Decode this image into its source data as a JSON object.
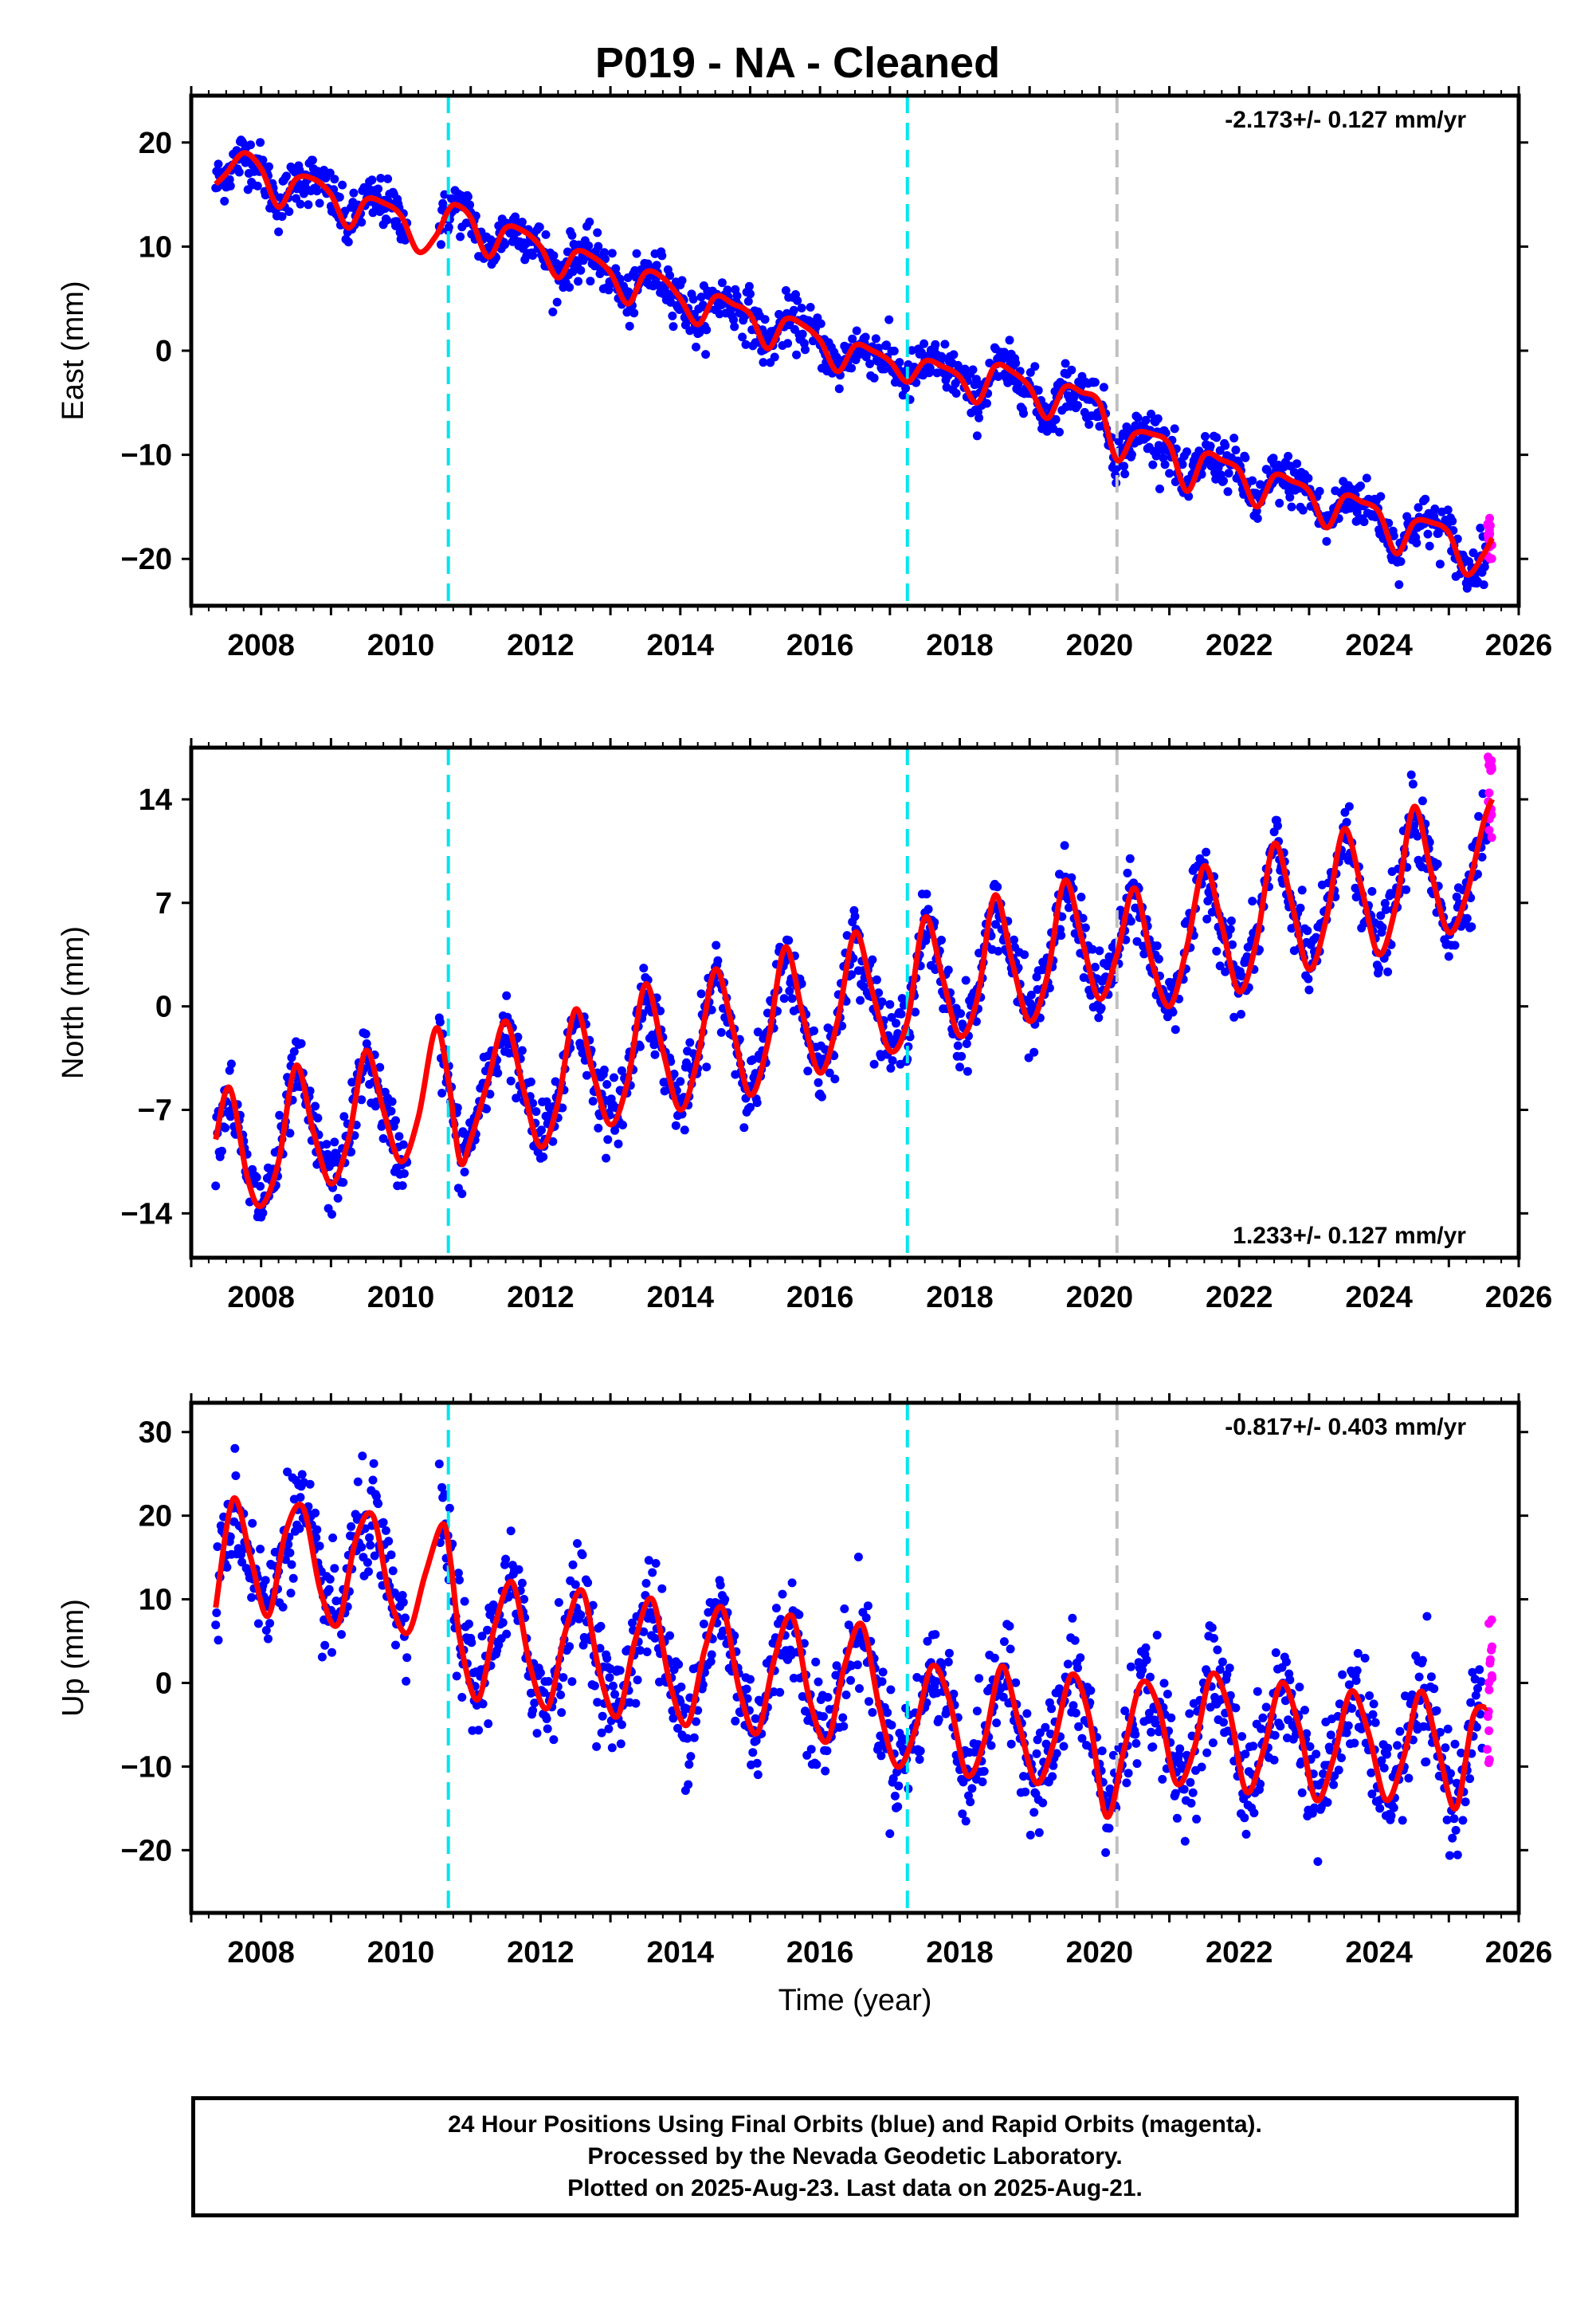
{
  "title": "P019  - NA - Cleaned",
  "xlabel": "Time (year)",
  "colors": {
    "final_orbits": "#0000ff",
    "rapid_orbits": "#ff00ff",
    "model_fit": "#ff0000",
    "equipment_change": "#00e5ee",
    "earthquake_line": "#c0c0c0"
  },
  "chart_data": [
    {
      "type": "scatter",
      "component": "east",
      "ylabel": "East (mm)",
      "ylim": [
        -24.5,
        24.5
      ],
      "yticks": [
        -20,
        -10,
        0,
        10,
        20
      ],
      "xlim": [
        2007.0,
        2026.0
      ],
      "xticks": [
        2008,
        2010,
        2012,
        2014,
        2016,
        2018,
        2020,
        2022,
        2024,
        2026
      ],
      "rate_label": "-2.173+/- 0.127 mm/yr",
      "rate_label_position": "top-right",
      "grid": false,
      "vertical_lines": [
        {
          "x": 2010.68,
          "kind": "equipment_change"
        },
        {
          "x": 2017.25,
          "kind": "equipment_change"
        },
        {
          "x": 2020.25,
          "kind": "earthquake_line"
        }
      ],
      "model_fit": {
        "x": [
          2007.35,
          2007.5,
          2007.75,
          2008.0,
          2008.25,
          2008.5,
          2008.75,
          2009.0,
          2009.25,
          2009.5,
          2009.75,
          2010.0,
          2010.25,
          2010.5,
          2010.68,
          2010.8,
          2011.0,
          2011.25,
          2011.5,
          2011.75,
          2012.0,
          2012.25,
          2012.5,
          2012.75,
          2013.0,
          2013.25,
          2013.5,
          2013.75,
          2014.0,
          2014.25,
          2014.5,
          2014.75,
          2015.0,
          2015.25,
          2015.5,
          2015.75,
          2016.0,
          2016.25,
          2016.5,
          2016.75,
          2017.0,
          2017.25,
          2017.5,
          2017.75,
          2018.0,
          2018.25,
          2018.5,
          2018.75,
          2019.0,
          2019.25,
          2019.5,
          2019.75,
          2020.0,
          2020.25,
          2020.5,
          2020.75,
          2021.0,
          2021.25,
          2021.5,
          2021.75,
          2022.0,
          2022.25,
          2022.5,
          2022.75,
          2023.0,
          2023.25,
          2023.5,
          2023.75,
          2024.0,
          2024.25,
          2024.5,
          2024.75,
          2025.0,
          2025.25,
          2025.5,
          2025.62
        ],
        "y": [
          16.0,
          17.0,
          19.0,
          17.5,
          13.8,
          16.5,
          16.5,
          15.0,
          11.8,
          14.5,
          14.2,
          13.0,
          9.5,
          11.0,
          13.5,
          14.0,
          12.8,
          9.0,
          11.8,
          11.5,
          10.0,
          7.0,
          9.5,
          9.0,
          7.5,
          4.5,
          7.5,
          7.0,
          5.0,
          2.5,
          5.2,
          4.5,
          3.5,
          0.2,
          3.0,
          2.5,
          1.0,
          -2.0,
          0.5,
          0.0,
          -1.0,
          -3.0,
          -1.0,
          -1.5,
          -2.5,
          -5.0,
          -1.5,
          -2.0,
          -3.5,
          -6.5,
          -3.5,
          -4.0,
          -5.0,
          -10.5,
          -8.0,
          -8.0,
          -9.0,
          -13.5,
          -10.0,
          -10.5,
          -11.5,
          -15.0,
          -12.0,
          -12.5,
          -13.5,
          -17.0,
          -14.0,
          -14.5,
          -15.5,
          -19.5,
          -16.5,
          -16.5,
          -17.5,
          -21.5,
          -19.5,
          -18.0
        ]
      },
      "rapid_orbits": {
        "x": [
          2025.55,
          2025.62
        ],
        "y_range": [
          -20,
          -15.5
        ]
      }
    },
    {
      "type": "scatter",
      "component": "north",
      "ylabel": "North (mm)",
      "ylim": [
        -17,
        17.5
      ],
      "yticks": [
        -14,
        -7,
        0,
        7,
        14
      ],
      "xlim": [
        2007.0,
        2026.0
      ],
      "xticks": [
        2008,
        2010,
        2012,
        2014,
        2016,
        2018,
        2020,
        2022,
        2024,
        2026
      ],
      "rate_label": "1.233+/- 0.127 mm/yr",
      "rate_label_position": "bottom-right",
      "grid": false,
      "vertical_lines": [
        {
          "x": 2010.68,
          "kind": "equipment_change"
        },
        {
          "x": 2017.25,
          "kind": "equipment_change"
        },
        {
          "x": 2020.25,
          "kind": "earthquake_line"
        }
      ],
      "model_fit": {
        "x": [
          2007.35,
          2007.55,
          2007.8,
          2008.0,
          2008.25,
          2008.5,
          2008.75,
          2009.0,
          2009.25,
          2009.5,
          2009.75,
          2010.0,
          2010.25,
          2010.5,
          2010.68,
          2010.85,
          2011.0,
          2011.25,
          2011.5,
          2011.75,
          2012.0,
          2012.25,
          2012.5,
          2012.75,
          2013.0,
          2013.25,
          2013.5,
          2013.75,
          2014.0,
          2014.25,
          2014.5,
          2014.75,
          2015.0,
          2015.25,
          2015.5,
          2015.75,
          2016.0,
          2016.25,
          2016.5,
          2016.75,
          2017.0,
          2017.25,
          2017.5,
          2017.75,
          2018.0,
          2018.25,
          2018.5,
          2018.75,
          2019.0,
          2019.25,
          2019.5,
          2019.75,
          2020.0,
          2020.25,
          2020.5,
          2020.75,
          2021.0,
          2021.25,
          2021.5,
          2021.75,
          2022.0,
          2022.25,
          2022.5,
          2022.75,
          2023.0,
          2023.25,
          2023.5,
          2023.75,
          2024.0,
          2024.25,
          2024.5,
          2024.75,
          2025.0,
          2025.25,
          2025.5,
          2025.62
        ],
        "y": [
          -9.0,
          -5.5,
          -11.5,
          -13.5,
          -10.5,
          -4.0,
          -8.5,
          -12.0,
          -9.0,
          -3.0,
          -7.0,
          -10.5,
          -7.5,
          -1.5,
          -5.0,
          -10.5,
          -9.0,
          -5.0,
          -1.0,
          -5.5,
          -9.5,
          -6.5,
          -0.2,
          -4.5,
          -8.0,
          -5.0,
          1.5,
          -3.0,
          -7.0,
          -3.5,
          2.5,
          -1.5,
          -6.0,
          -2.5,
          4.0,
          -0.5,
          -4.5,
          -1.0,
          5.0,
          1.0,
          -3.0,
          -1.0,
          6.0,
          2.0,
          -2.0,
          0.5,
          7.5,
          3.0,
          -1.0,
          2.0,
          8.5,
          4.5,
          0.5,
          3.5,
          8.0,
          3.0,
          0.0,
          4.0,
          9.5,
          5.5,
          1.0,
          4.5,
          11.0,
          7.0,
          2.5,
          6.0,
          12.0,
          8.0,
          3.5,
          7.0,
          13.5,
          9.0,
          5.0,
          7.5,
          12.5,
          14.0
        ]
      },
      "rapid_orbits": {
        "x": [
          2025.55,
          2025.62
        ],
        "y_range": [
          11,
          17
        ]
      }
    },
    {
      "type": "scatter",
      "component": "up",
      "ylabel": "Up (mm)",
      "ylim": [
        -27.5,
        33.5
      ],
      "yticks": [
        -20,
        -10,
        0,
        10,
        20,
        30
      ],
      "xlim": [
        2007.0,
        2026.0
      ],
      "xticks": [
        2008,
        2010,
        2012,
        2014,
        2016,
        2018,
        2020,
        2022,
        2024,
        2026
      ],
      "rate_label": "-0.817+/- 0.403 mm/yr",
      "rate_label_position": "top-right",
      "grid": false,
      "vertical_lines": [
        {
          "x": 2010.68,
          "kind": "equipment_change"
        },
        {
          "x": 2017.25,
          "kind": "equipment_change"
        },
        {
          "x": 2020.25,
          "kind": "earthquake_line"
        }
      ],
      "model_fit": {
        "x": [
          2007.35,
          2007.6,
          2007.85,
          2008.1,
          2008.35,
          2008.6,
          2008.85,
          2009.1,
          2009.35,
          2009.6,
          2009.85,
          2010.1,
          2010.35,
          2010.6,
          2010.72,
          2010.85,
          2011.1,
          2011.35,
          2011.6,
          2011.85,
          2012.1,
          2012.35,
          2012.6,
          2012.85,
          2013.1,
          2013.35,
          2013.6,
          2013.85,
          2014.1,
          2014.35,
          2014.6,
          2014.85,
          2015.1,
          2015.35,
          2015.6,
          2015.85,
          2016.1,
          2016.35,
          2016.6,
          2016.85,
          2017.1,
          2017.35,
          2017.6,
          2017.85,
          2018.1,
          2018.35,
          2018.6,
          2018.85,
          2019.1,
          2019.35,
          2019.6,
          2019.85,
          2020.1,
          2020.35,
          2020.6,
          2020.85,
          2021.1,
          2021.35,
          2021.6,
          2021.85,
          2022.1,
          2022.35,
          2022.6,
          2022.85,
          2023.1,
          2023.35,
          2023.6,
          2023.85,
          2024.1,
          2024.35,
          2024.6,
          2024.85,
          2025.1,
          2025.35,
          2025.55
        ],
        "y": [
          9,
          22,
          15,
          8,
          18,
          21,
          11,
          7,
          17,
          20,
          10,
          6,
          13,
          19,
          14,
          5,
          -2,
          7,
          12,
          2,
          -3,
          6,
          11,
          1,
          -4,
          5,
          10,
          0,
          -5,
          4,
          9,
          -1,
          -6,
          3,
          8,
          -2,
          -7,
          2,
          7,
          -3,
          -10,
          -6,
          2,
          -2,
          -11,
          -7,
          2,
          -5,
          -12,
          -7,
          1,
          -4,
          -16,
          -8,
          0,
          -3,
          -12,
          -8,
          1,
          -3,
          -13,
          -8,
          0,
          -5,
          -14,
          -9,
          -1,
          -6,
          -14,
          -9,
          -1,
          -8,
          -15,
          -4,
          -3
        ]
      },
      "rapid_orbits": {
        "x": [
          2025.55,
          2025.62
        ],
        "y_range": [
          -10,
          8
        ]
      }
    }
  ],
  "footer": {
    "line1": "24 Hour Positions Using Final Orbits (blue) and Rapid Orbits (magenta).",
    "line2": "Processed by the Nevada Geodetic Laboratory.",
    "line3": "Plotted on 2025-Aug-23. Last data on 2025-Aug-21."
  }
}
